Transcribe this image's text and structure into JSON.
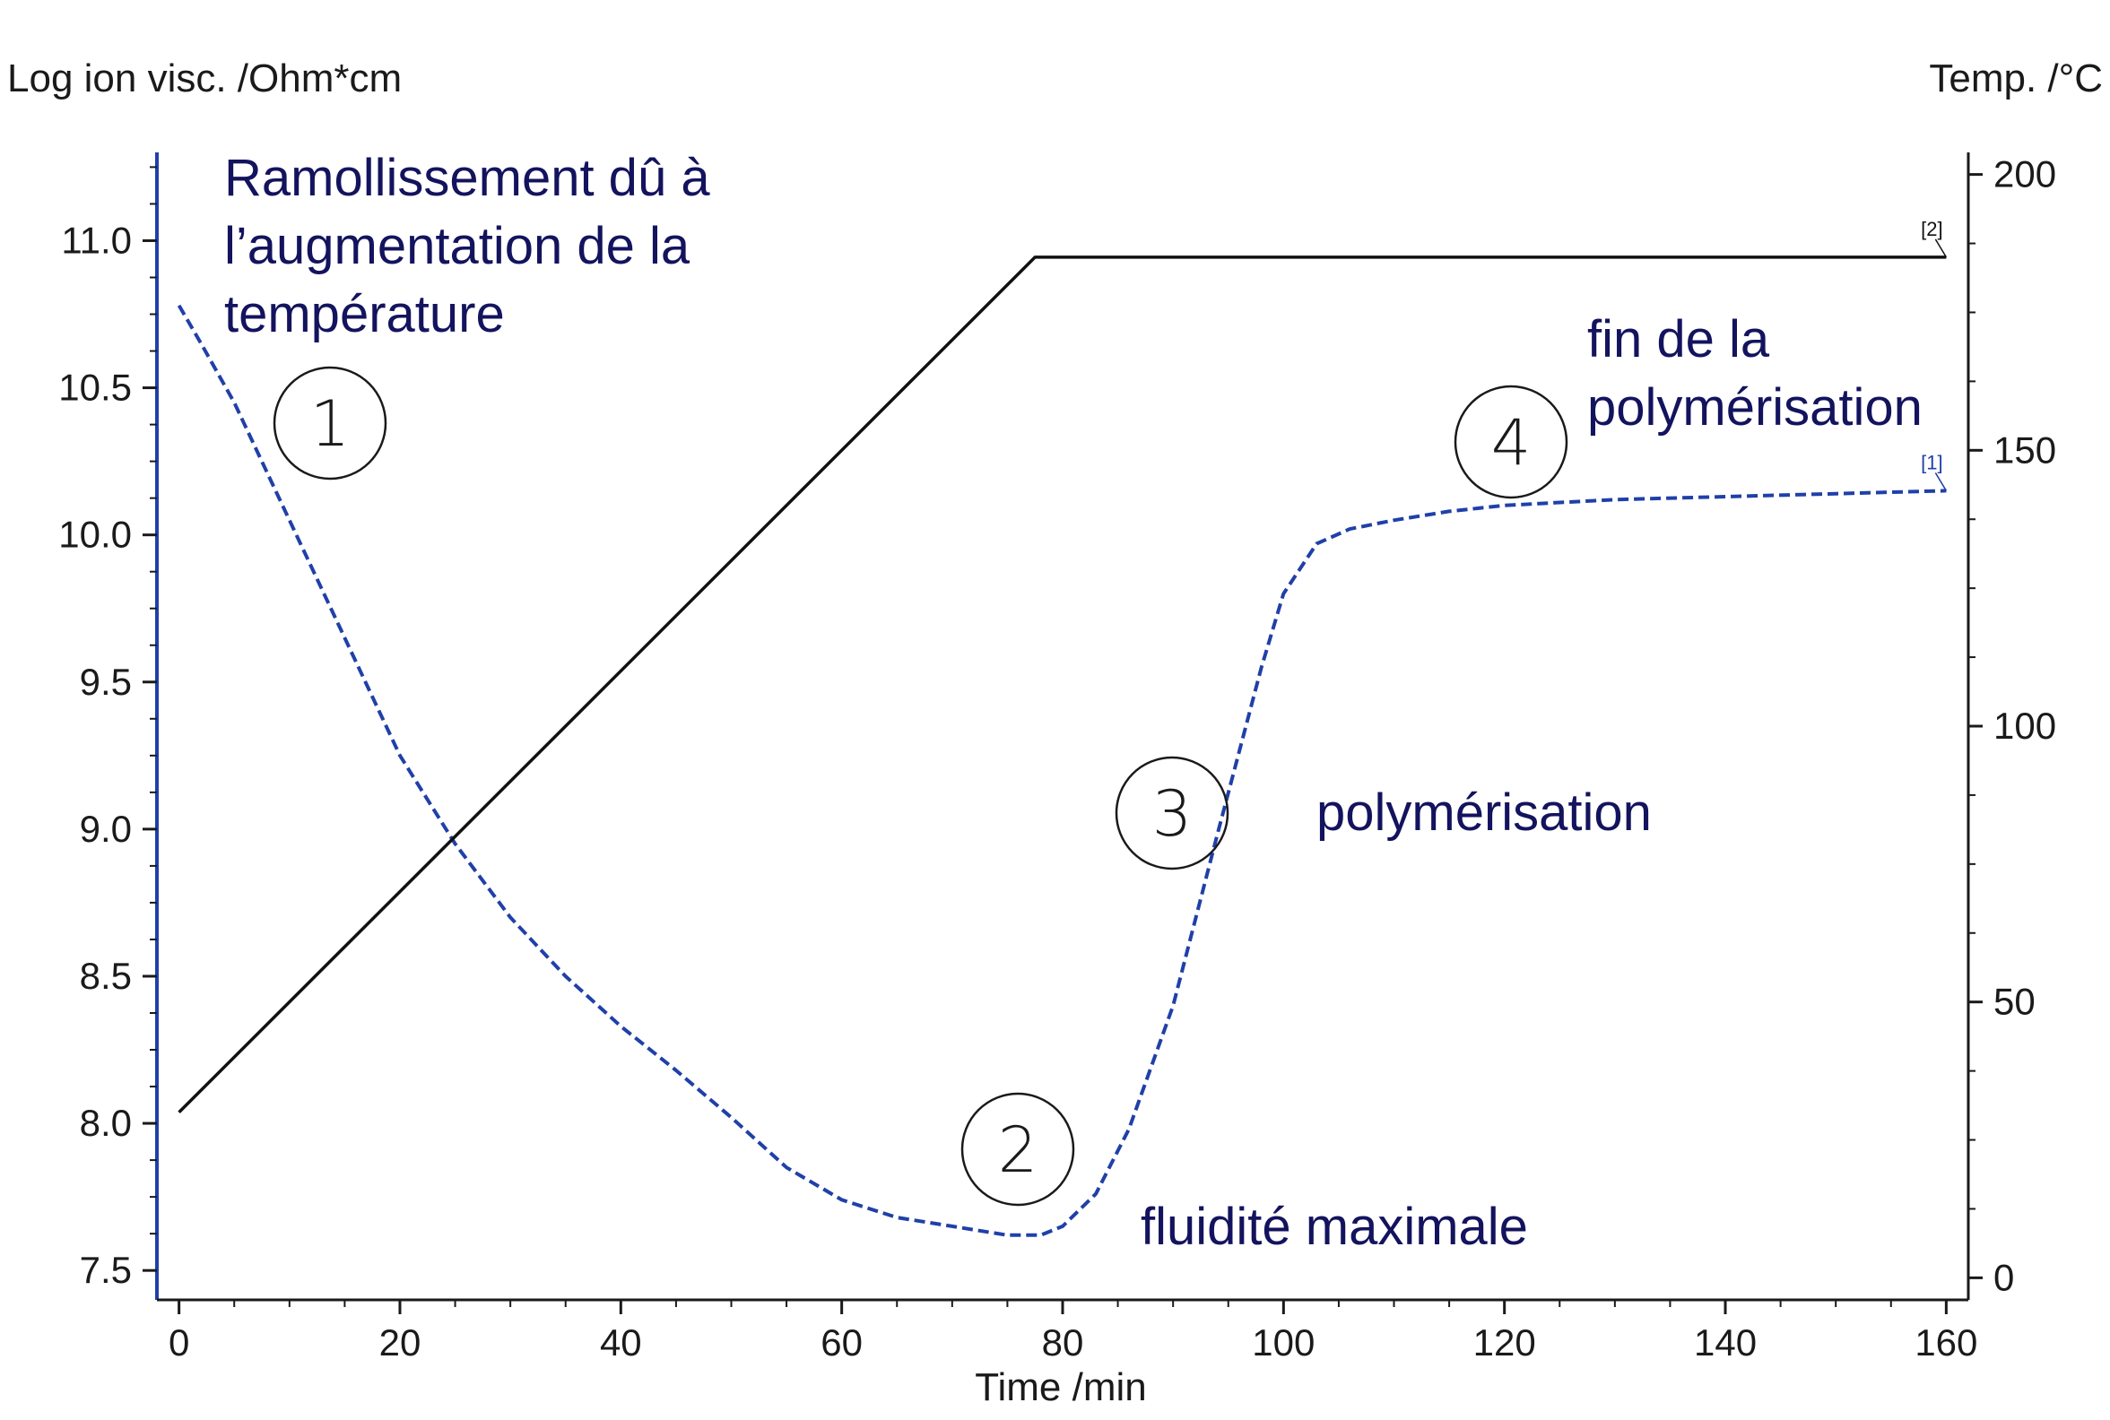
{
  "chart_data": {
    "type": "line",
    "xlabel": "Time /min",
    "ylabel": "Log ion visc. /Ohm*cm",
    "y2label": "Temp. /°C",
    "xlim": [
      -2,
      162
    ],
    "ylim": [
      7.4,
      11.3
    ],
    "y2lim": [
      -4,
      204
    ],
    "xticks": [
      0,
      20,
      40,
      60,
      80,
      100,
      120,
      140,
      160
    ],
    "yticks": [
      7.5,
      8.0,
      8.5,
      9.0,
      9.5,
      10.0,
      10.5,
      11.0
    ],
    "y2ticks": [
      0,
      50,
      100,
      150,
      200
    ],
    "ytick_labels": [
      "7.5",
      "8.0",
      "8.5",
      "9.0",
      "9.5",
      "10.0",
      "10.5",
      "11.0"
    ],
    "xtick_labels": [
      "0",
      "20",
      "40",
      "60",
      "80",
      "100",
      "120",
      "140",
      "160"
    ],
    "y2tick_labels": [
      "0",
      "50",
      "100",
      "150",
      "200"
    ],
    "grid": false,
    "series": [
      {
        "name": "[1]",
        "axis": "left",
        "style": "dashed",
        "color": "#2040a8",
        "x": [
          0,
          2,
          5,
          10,
          15,
          20,
          25,
          30,
          35,
          40,
          45,
          50,
          55,
          60,
          65,
          70,
          75,
          78,
          80,
          83,
          86,
          90,
          94,
          98,
          100,
          103,
          106,
          110,
          115,
          120,
          130,
          140,
          150,
          160
        ],
        "y": [
          10.78,
          10.65,
          10.45,
          10.05,
          9.65,
          9.25,
          8.95,
          8.7,
          8.5,
          8.33,
          8.18,
          8.02,
          7.85,
          7.74,
          7.68,
          7.65,
          7.62,
          7.62,
          7.65,
          7.76,
          7.98,
          8.4,
          8.98,
          9.55,
          9.8,
          9.97,
          10.02,
          10.05,
          10.08,
          10.1,
          10.12,
          10.13,
          10.14,
          10.15
        ]
      },
      {
        "name": "[2]",
        "axis": "right",
        "style": "solid",
        "color": "#111111",
        "x": [
          0,
          77.5,
          160
        ],
        "y": [
          30,
          185,
          185
        ]
      }
    ],
    "annotations": [
      {
        "marker": "1",
        "text": [
          "Ramollissement dû à",
          "l’augmentation de la",
          "température"
        ]
      },
      {
        "marker": "2",
        "text": [
          "fluidité maximale"
        ]
      },
      {
        "marker": "3",
        "text": [
          "polymérisation"
        ]
      },
      {
        "marker": "4",
        "text": [
          "fin de la",
          "polymérisation"
        ]
      }
    ]
  }
}
